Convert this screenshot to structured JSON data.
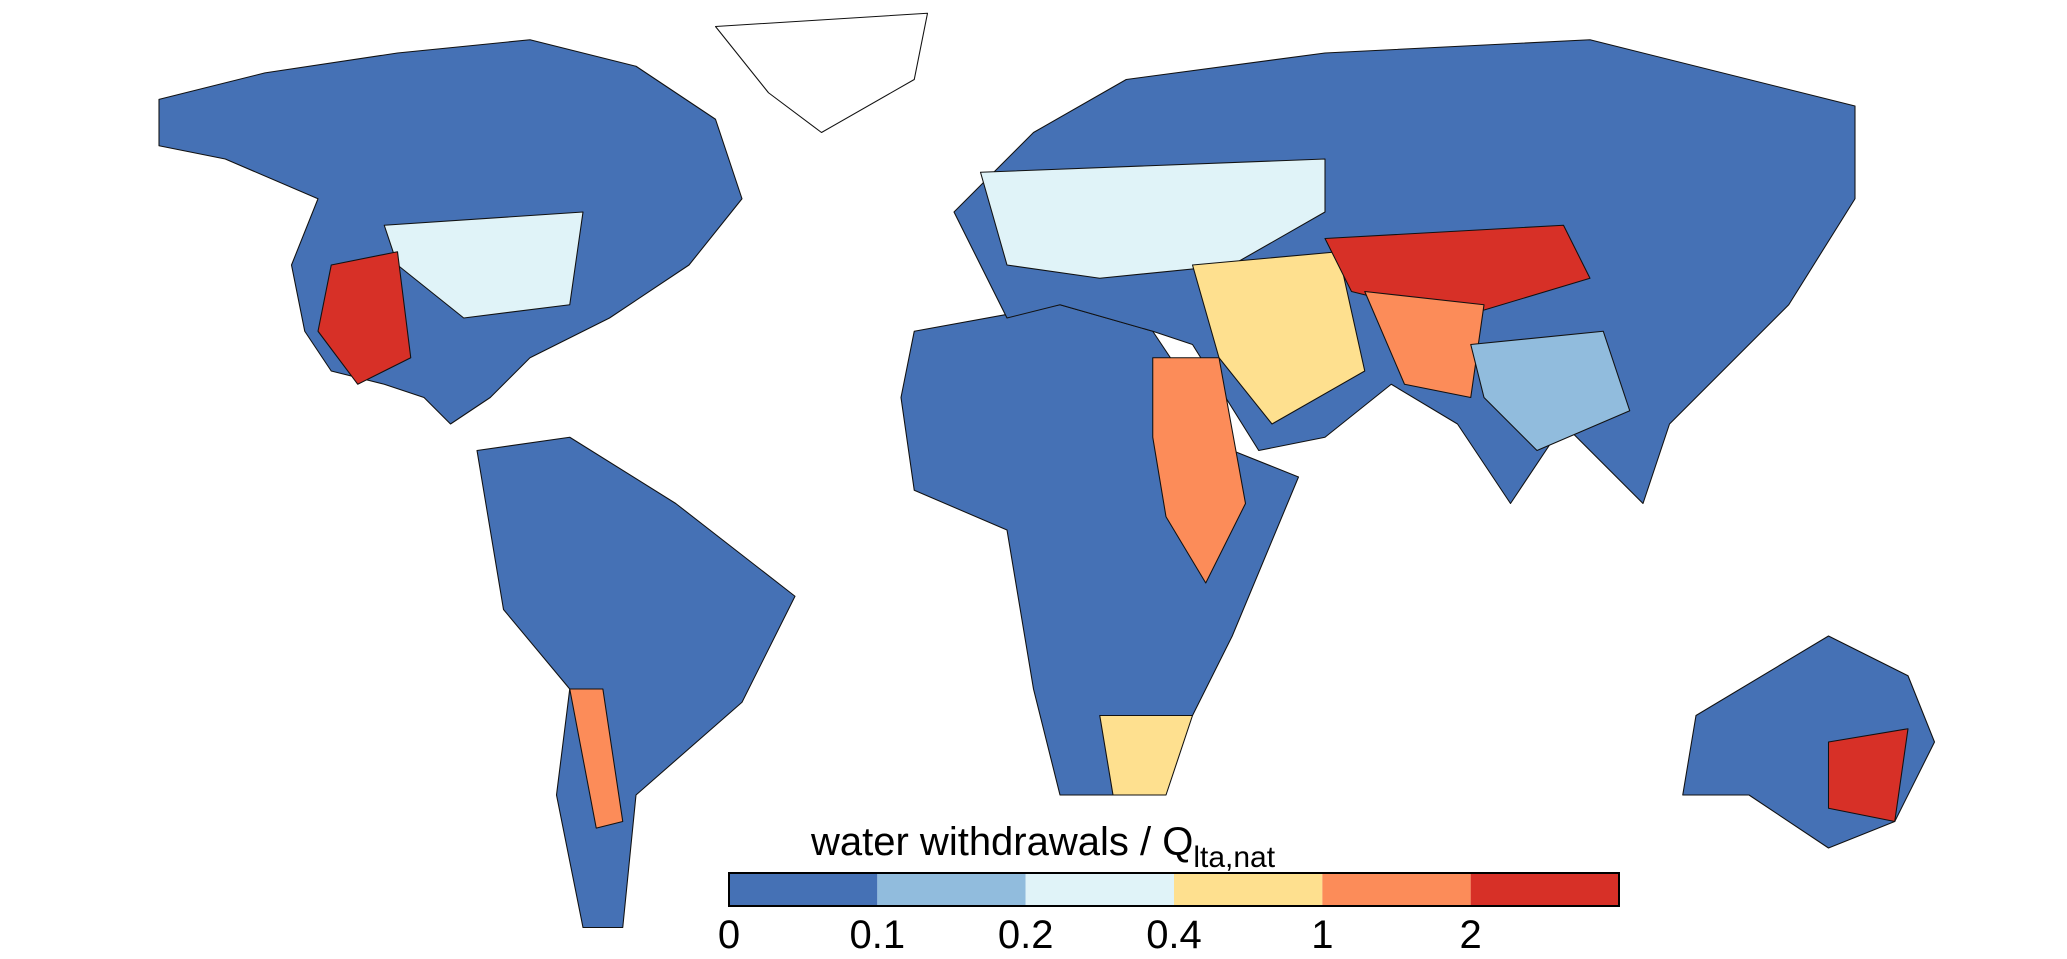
{
  "legend": {
    "title": "water withdrawals / Q",
    "title_subscript": "lta,nat",
    "colors": [
      "#4571b5",
      "#91bcdd",
      "#e0f3f8",
      "#fee08f",
      "#fc8c59",
      "#d73027"
    ],
    "ticks": [
      "0",
      "0.1",
      "0.2",
      "0.4",
      "1",
      "2"
    ]
  }
}
